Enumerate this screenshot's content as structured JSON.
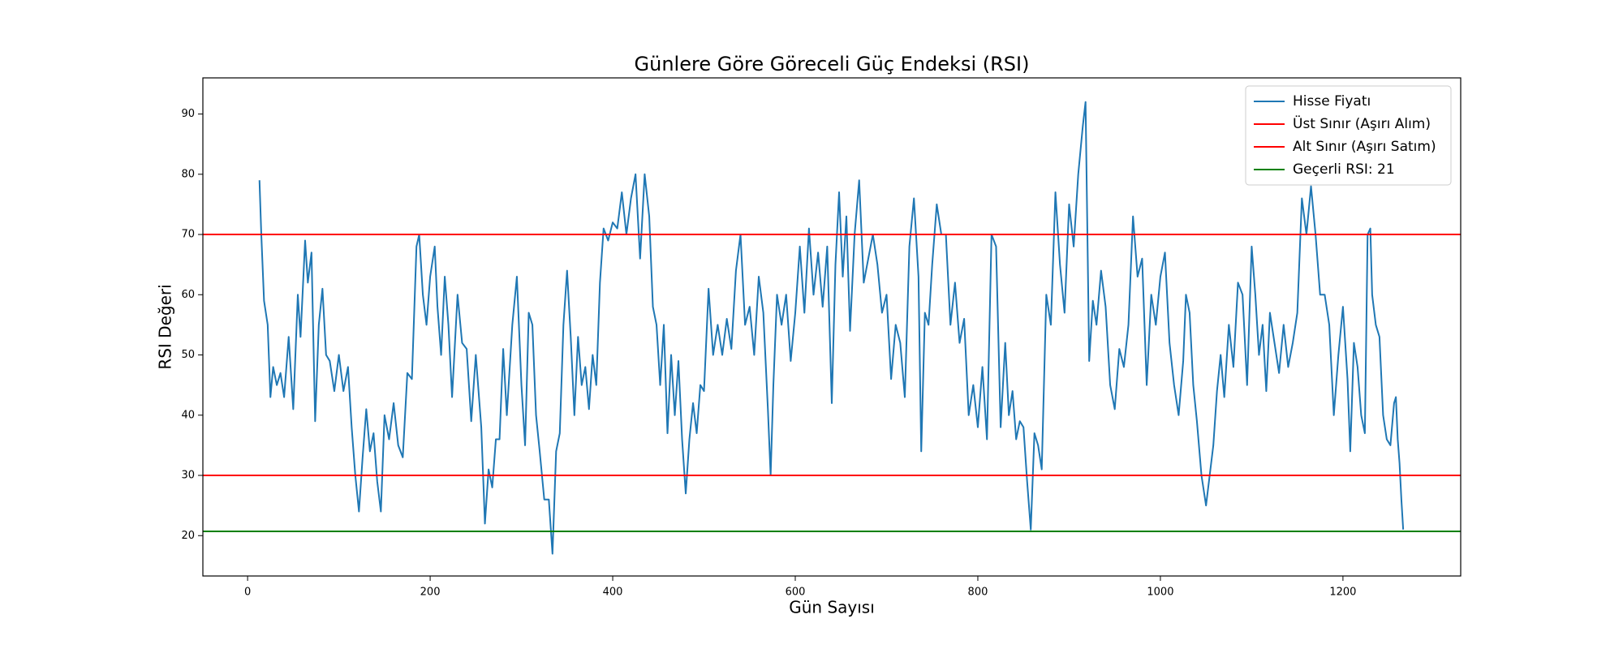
{
  "chart_data": {
    "type": "line",
    "title": "Günlere Göre Göreceli Güç Endeksi (RSI)",
    "xlabel": "Gün Sayısı",
    "ylabel": "RSI Değeri",
    "xlim": [
      -49,
      1329
    ],
    "ylim": [
      13.3,
      96
    ],
    "xticks": [
      0,
      200,
      400,
      600,
      800,
      1000,
      1200
    ],
    "yticks": [
      20,
      30,
      40,
      50,
      60,
      70,
      80,
      90
    ],
    "grid": false,
    "legend": "upper right",
    "x": [
      13,
      15,
      18,
      22,
      25,
      28,
      32,
      36,
      40,
      45,
      50,
      55,
      58,
      63,
      66,
      70,
      74,
      78,
      82,
      86,
      90,
      95,
      100,
      105,
      110,
      114,
      118,
      122,
      126,
      130,
      134,
      138,
      142,
      146,
      150,
      155,
      160,
      165,
      170,
      175,
      180,
      185,
      188,
      192,
      196,
      200,
      205,
      208,
      212,
      216,
      220,
      224,
      230,
      235,
      240,
      245,
      250,
      256,
      260,
      264,
      268,
      272,
      276,
      280,
      284,
      290,
      295,
      300,
      304,
      308,
      312,
      316,
      320,
      325,
      330,
      334,
      338,
      342,
      346,
      350,
      354,
      358,
      362,
      366,
      370,
      374,
      378,
      382,
      386,
      390,
      395,
      400,
      405,
      410,
      415,
      420,
      425,
      430,
      435,
      440,
      444,
      448,
      452,
      456,
      460,
      464,
      468,
      472,
      476,
      480,
      484,
      488,
      492,
      496,
      500,
      505,
      510,
      515,
      520,
      525,
      530,
      535,
      540,
      545,
      550,
      555,
      560,
      565,
      570,
      573,
      576,
      580,
      585,
      590,
      595,
      600,
      605,
      610,
      615,
      620,
      625,
      630,
      635,
      640,
      644,
      648,
      652,
      656,
      660,
      665,
      670,
      675,
      680,
      685,
      690,
      695,
      700,
      705,
      710,
      715,
      720,
      725,
      730,
      735,
      738,
      742,
      746,
      750,
      755,
      760,
      765,
      770,
      775,
      780,
      785,
      790,
      795,
      800,
      805,
      810,
      815,
      820,
      825,
      830,
      834,
      838,
      842,
      846,
      850,
      854,
      858,
      862,
      866,
      870,
      875,
      880,
      885,
      890,
      895,
      900,
      905,
      910,
      915,
      918,
      922,
      926,
      930,
      935,
      940,
      945,
      950,
      955,
      960,
      965,
      970,
      975,
      980,
      985,
      990,
      995,
      1000,
      1005,
      1010,
      1015,
      1020,
      1025,
      1028,
      1032,
      1036,
      1040,
      1045,
      1050,
      1054,
      1058,
      1062,
      1066,
      1070,
      1075,
      1080,
      1085,
      1090,
      1095,
      1100,
      1104,
      1108,
      1112,
      1116,
      1120,
      1125,
      1130,
      1135,
      1140,
      1145,
      1150,
      1155,
      1160,
      1165,
      1170,
      1175,
      1180,
      1185,
      1190,
      1195,
      1200,
      1205,
      1208,
      1212,
      1216,
      1220,
      1224,
      1227,
      1230,
      1232,
      1236,
      1240,
      1244,
      1248,
      1252,
      1256,
      1258,
      1260,
      1262,
      1264,
      1266
    ],
    "series": [
      {
        "name": "Hisse Fiyatı",
        "color": "#1f77b4",
        "values": [
          79,
          70,
          59,
          55,
          43,
          48,
          45,
          47,
          43,
          53,
          41,
          60,
          53,
          69,
          62,
          67,
          39,
          55,
          61,
          50,
          49,
          44,
          50,
          44,
          48,
          38,
          30,
          24,
          33,
          41,
          34,
          37,
          29,
          24,
          40,
          36,
          42,
          35,
          33,
          47,
          46,
          68,
          70,
          60,
          55,
          63,
          68,
          58,
          50,
          63,
          55,
          43,
          60,
          52,
          51,
          39,
          50,
          38,
          22,
          31,
          28,
          36,
          36,
          51,
          40,
          55,
          63,
          45,
          35,
          57,
          55,
          40,
          34,
          26,
          26,
          17,
          34,
          37,
          55,
          64,
          53,
          40,
          53,
          45,
          48,
          41,
          50,
          45,
          62,
          71,
          69,
          72,
          71,
          77,
          70,
          76,
          80,
          66,
          80,
          73,
          58,
          55,
          45,
          55,
          37,
          50,
          40,
          49,
          36,
          27,
          36,
          42,
          37,
          45,
          44,
          61,
          50,
          55,
          50,
          56,
          51,
          64,
          70,
          55,
          58,
          50,
          63,
          57,
          41,
          30,
          45,
          60,
          55,
          60,
          49,
          57,
          68,
          57,
          71,
          60,
          67,
          58,
          68,
          42,
          65,
          77,
          63,
          73,
          54,
          70,
          79,
          62,
          66,
          70,
          65,
          57,
          60,
          46,
          55,
          52,
          43,
          68,
          76,
          63,
          34,
          57,
          55,
          65,
          75,
          70,
          70,
          55,
          62,
          52,
          56,
          40,
          45,
          38,
          48,
          36,
          70,
          68,
          38,
          52,
          40,
          44,
          36,
          39,
          38,
          29,
          21,
          37,
          35,
          31,
          60,
          55,
          77,
          65,
          57,
          75,
          68,
          80,
          88,
          92,
          49,
          59,
          55,
          64,
          58,
          45,
          41,
          51,
          48,
          55,
          73,
          63,
          66,
          45,
          60,
          55,
          63,
          67,
          52,
          45,
          40,
          49,
          60,
          57,
          45,
          39,
          30,
          25,
          30,
          35,
          44,
          50,
          43,
          55,
          48,
          62,
          60,
          45,
          68,
          60,
          50,
          55,
          44,
          57,
          52,
          47,
          55,
          48,
          52,
          57,
          76,
          70,
          78,
          70,
          60,
          60,
          55,
          40,
          50,
          58,
          46,
          34,
          52,
          48,
          40,
          37,
          70,
          71,
          60,
          55,
          53,
          40,
          36,
          35,
          42,
          43,
          36,
          32,
          26,
          21
        ]
      }
    ],
    "hlines": [
      {
        "name": "Üst Sınır (Aşırı Alım)",
        "value": 70,
        "color": "#ff0000"
      },
      {
        "name": "Alt Sınır (Aşırı Satım)",
        "value": 30,
        "color": "#ff0000"
      },
      {
        "name": "Geçerli RSI: 21",
        "value": 20.7,
        "color": "#008000"
      }
    ]
  }
}
